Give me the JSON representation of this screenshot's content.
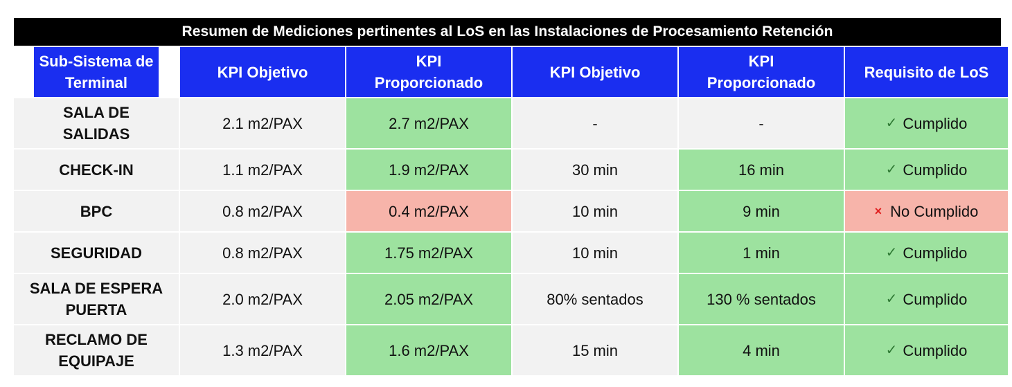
{
  "title": "Resumen de Mediciones pertinentes al LoS en las Instalaciones de Procesamiento Retención",
  "headers": [
    "Sub-Sistema de Terminal",
    "KPI Objetivo",
    "KPI Proporcionado",
    "KPI Objetivo",
    "KPI Proporcionado",
    "Requisito de LoS"
  ],
  "colors": {
    "header_bg": "#1a2ef0",
    "met": "#9de29f",
    "not_met": "#f7b4aa",
    "neutral": "#f2f2f2"
  },
  "rows": [
    {
      "subsystem": "SALA DE SALIDAS",
      "kpi_obj_1": "2.1 m2/PAX",
      "kpi_prop_1": "2.7 m2/PAX",
      "kpi_obj_2": "-",
      "kpi_prop_2": "-",
      "status_icon": "✓",
      "status": "Cumplido"
    },
    {
      "subsystem": "CHECK-IN",
      "kpi_obj_1": "1.1 m2/PAX",
      "kpi_prop_1": "1.9 m2/PAX",
      "kpi_obj_2": "30 min",
      "kpi_prop_2": "16 min",
      "status_icon": "✓",
      "status": "Cumplido"
    },
    {
      "subsystem": "BPC",
      "kpi_obj_1": "0.8 m2/PAX",
      "kpi_prop_1": "0.4 m2/PAX",
      "kpi_obj_2": "10 min",
      "kpi_prop_2": "9 min",
      "status_icon": "×",
      "status": "No Cumplido"
    },
    {
      "subsystem": "SEGURIDAD",
      "kpi_obj_1": "0.8 m2/PAX",
      "kpi_prop_1": "1.75 m2/PAX",
      "kpi_obj_2": "10 min",
      "kpi_prop_2": "1 min",
      "status_icon": "✓",
      "status": "Cumplido"
    },
    {
      "subsystem": "SALA DE ESPERA PUERTA",
      "kpi_obj_1": "2.0 m2/PAX",
      "kpi_prop_1": "2.05 m2/PAX",
      "kpi_obj_2": "80% sentados",
      "kpi_prop_2": "130 % sentados",
      "status_icon": "✓",
      "status": "Cumplido"
    },
    {
      "subsystem": "RECLAMO DE EQUIPAJE",
      "kpi_obj_1": "1.3 m2/PAX",
      "kpi_prop_1": "1.6 m2/PAX",
      "kpi_obj_2": "15 min",
      "kpi_prop_2": "4 min",
      "status_icon": "✓",
      "status": "Cumplido"
    }
  ]
}
